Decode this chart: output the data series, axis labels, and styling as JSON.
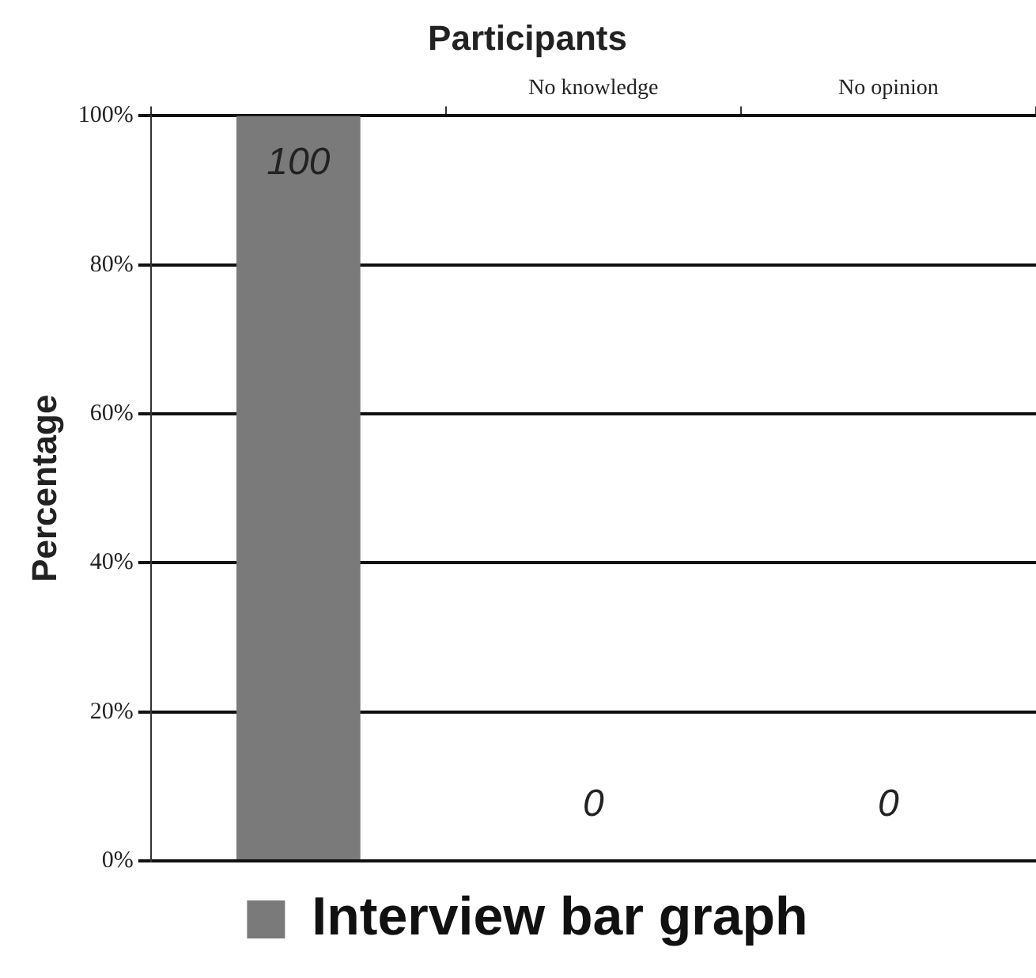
{
  "chart_data": {
    "type": "bar",
    "title": "Participants",
    "ylabel": "Percentage",
    "categories": [
      null,
      "No knowledge",
      "No opinion"
    ],
    "series": [
      {
        "name": "Interview bar graph",
        "color": "#7a7a7a",
        "values": [
          100,
          0,
          0
        ]
      }
    ],
    "ylim": [
      0,
      100
    ],
    "yticks": [
      {
        "value": 0,
        "label": "0%"
      },
      {
        "value": 20,
        "label": "20%"
      },
      {
        "value": 40,
        "label": "40%"
      },
      {
        "value": 60,
        "label": "60%"
      },
      {
        "value": 80,
        "label": "80%"
      },
      {
        "value": 100,
        "label": "100%"
      }
    ],
    "grid": "y",
    "legend": "bottom",
    "data_labels": true
  }
}
